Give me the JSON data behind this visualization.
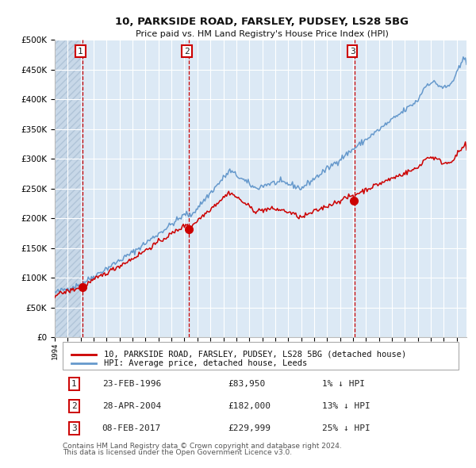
{
  "title": "10, PARKSIDE ROAD, FARSLEY, PUDSEY, LS28 5BG",
  "subtitle": "Price paid vs. HM Land Registry's House Price Index (HPI)",
  "legend_property": "10, PARKSIDE ROAD, FARSLEY, PUDSEY, LS28 5BG (detached house)",
  "legend_hpi": "HPI: Average price, detached house, Leeds",
  "footnote_line1": "Contains HM Land Registry data © Crown copyright and database right 2024.",
  "footnote_line2": "This data is licensed under the Open Government Licence v3.0.",
  "sales": [
    {
      "label": "1",
      "date": "23-FEB-1996",
      "price": "£83,950",
      "pct": "1% ↓ HPI"
    },
    {
      "label": "2",
      "date": "28-APR-2004",
      "price": "£182,000",
      "pct": "13% ↓ HPI"
    },
    {
      "label": "3",
      "date": "08-FEB-2017",
      "price": "£229,999",
      "pct": "25% ↓ HPI"
    }
  ],
  "sale_dates_decimal": [
    1996.14,
    2004.33,
    2017.1
  ],
  "sale_prices": [
    83950,
    182000,
    229999
  ],
  "bg_color": "#dce9f5",
  "grid_color": "#ffffff",
  "red_color": "#cc0000",
  "blue_color": "#6699cc",
  "ylim": [
    0,
    500000
  ],
  "yticks": [
    0,
    50000,
    100000,
    150000,
    200000,
    250000,
    300000,
    350000,
    400000,
    450000,
    500000
  ],
  "ytick_labels": [
    "£0",
    "£50K",
    "£100K",
    "£150K",
    "£200K",
    "£250K",
    "£300K",
    "£350K",
    "£400K",
    "£450K",
    "£500K"
  ],
  "xstart": 1994.0,
  "xend": 2025.75
}
